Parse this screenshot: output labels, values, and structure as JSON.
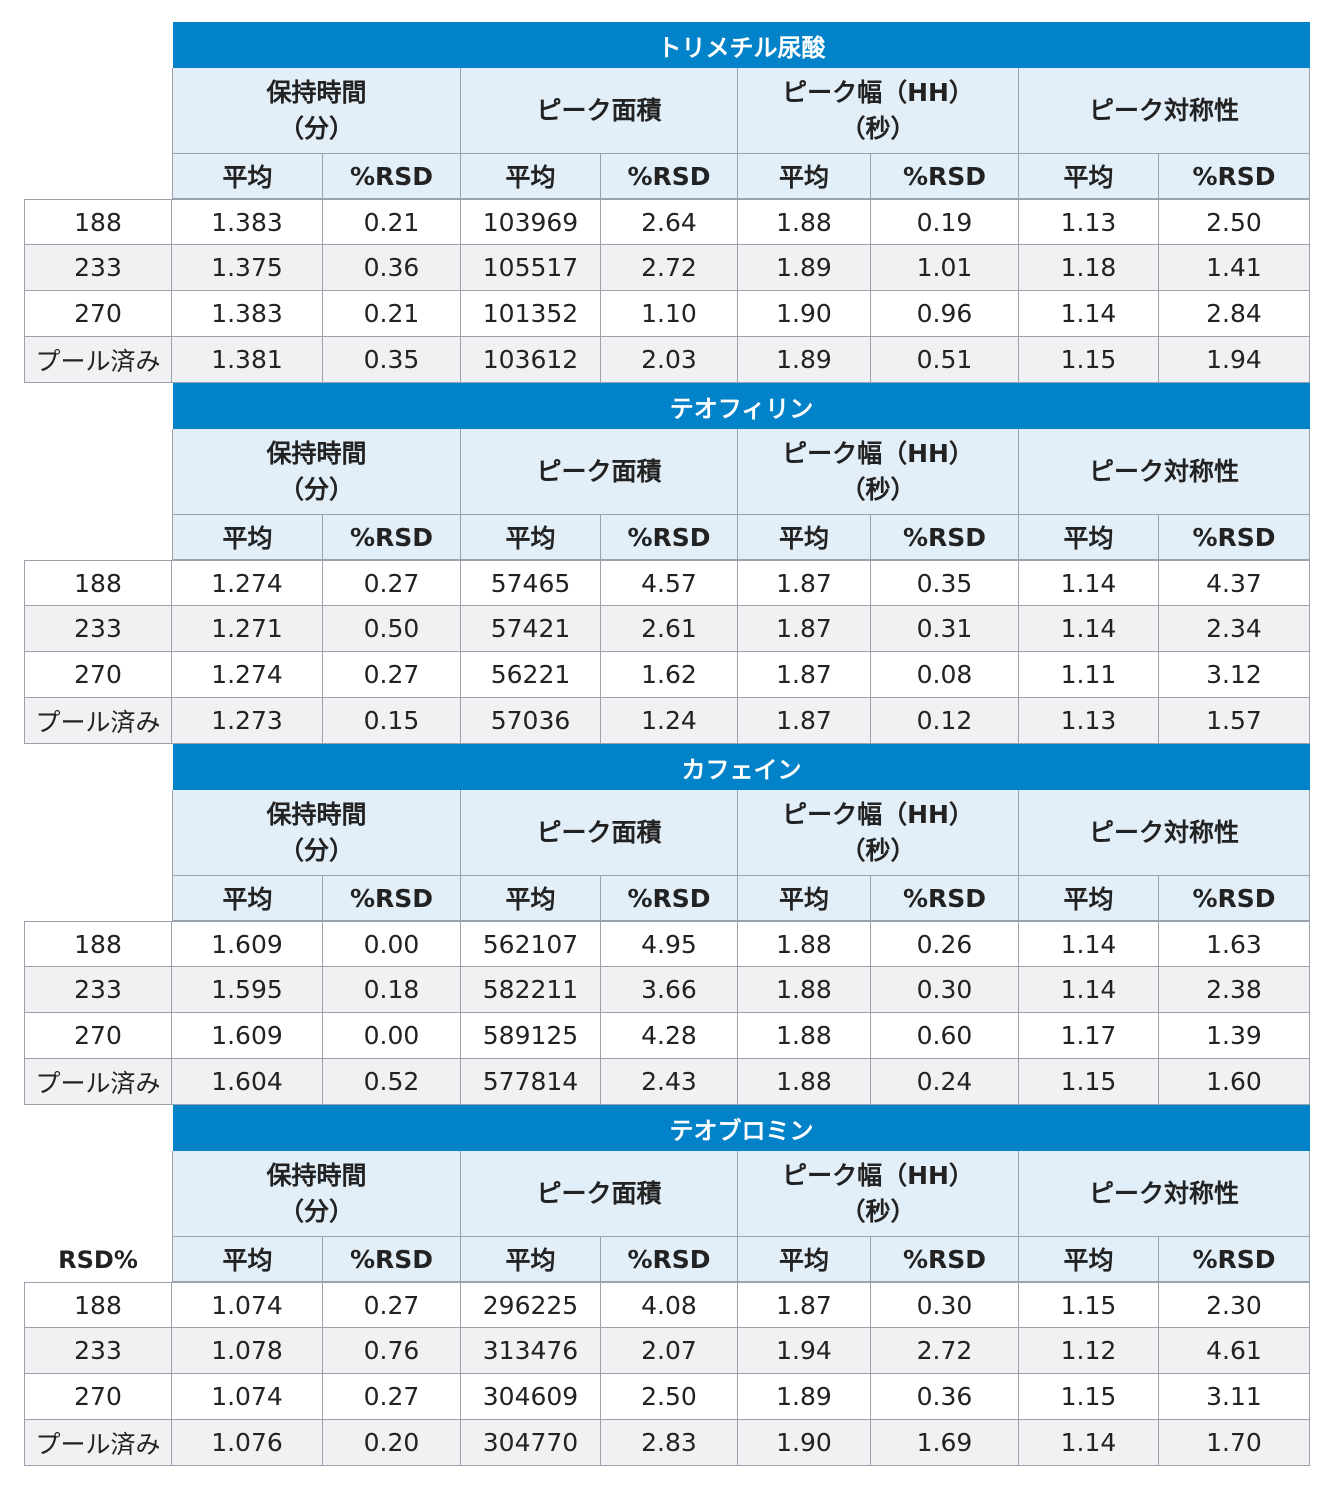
{
  "group_headers": [
    "保持時間\n（分）",
    "ピーク面積",
    "ピーク幅（HH）\n（秒）",
    "ピーク対称性"
  ],
  "sub_headers": [
    "平均",
    "%RSD",
    "平均",
    "%RSD",
    "平均",
    "%RSD",
    "平均",
    "%RSD"
  ],
  "corner_label": "RSD%",
  "sections": [
    {
      "title": "トリメチル尿酸",
      "rows": [
        [
          "188",
          "1.383",
          "0.21",
          "103969",
          "2.64",
          "1.88",
          "0.19",
          "1.13",
          "2.50"
        ],
        [
          "233",
          "1.375",
          "0.36",
          "105517",
          "2.72",
          "1.89",
          "1.01",
          "1.18",
          "1.41"
        ],
        [
          "270",
          "1.383",
          "0.21",
          "101352",
          "1.10",
          "1.90",
          "0.96",
          "1.14",
          "2.84"
        ],
        [
          "プール済み",
          "1.381",
          "0.35",
          "103612",
          "2.03",
          "1.89",
          "0.51",
          "1.15",
          "1.94"
        ]
      ]
    },
    {
      "title": "テオフィリン",
      "rows": [
        [
          "188",
          "1.274",
          "0.27",
          "57465",
          "4.57",
          "1.87",
          "0.35",
          "1.14",
          "4.37"
        ],
        [
          "233",
          "1.271",
          "0.50",
          "57421",
          "2.61",
          "1.87",
          "0.31",
          "1.14",
          "2.34"
        ],
        [
          "270",
          "1.274",
          "0.27",
          "56221",
          "1.62",
          "1.87",
          "0.08",
          "1.11",
          "3.12"
        ],
        [
          "プール済み",
          "1.273",
          "0.15",
          "57036",
          "1.24",
          "1.87",
          "0.12",
          "1.13",
          "1.57"
        ]
      ]
    },
    {
      "title": "カフェイン",
      "rows": [
        [
          "188",
          "1.609",
          "0.00",
          "562107",
          "4.95",
          "1.88",
          "0.26",
          "1.14",
          "1.63"
        ],
        [
          "233",
          "1.595",
          "0.18",
          "582211",
          "3.66",
          "1.88",
          "0.30",
          "1.14",
          "2.38"
        ],
        [
          "270",
          "1.609",
          "0.00",
          "589125",
          "4.28",
          "1.88",
          "0.60",
          "1.17",
          "1.39"
        ],
        [
          "プール済み",
          "1.604",
          "0.52",
          "577814",
          "2.43",
          "1.88",
          "0.24",
          "1.15",
          "1.60"
        ]
      ]
    },
    {
      "title": "テオブロミン",
      "rows": [
        [
          "188",
          "1.074",
          "0.27",
          "296225",
          "4.08",
          "1.87",
          "0.30",
          "1.15",
          "2.30"
        ],
        [
          "233",
          "1.078",
          "0.76",
          "313476",
          "2.07",
          "1.94",
          "2.72",
          "1.12",
          "4.61"
        ],
        [
          "270",
          "1.074",
          "0.27",
          "304609",
          "2.50",
          "1.89",
          "0.36",
          "1.15",
          "3.11"
        ],
        [
          "プール済み",
          "1.076",
          "0.20",
          "304770",
          "2.83",
          "1.90",
          "1.69",
          "1.14",
          "1.70"
        ]
      ]
    }
  ]
}
